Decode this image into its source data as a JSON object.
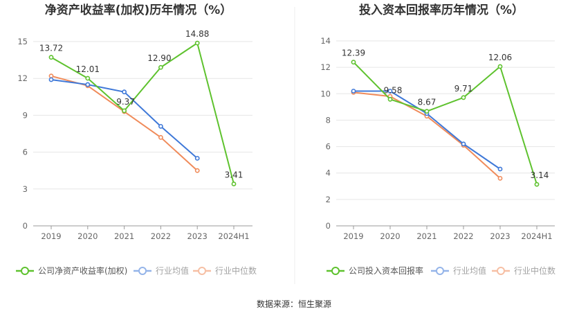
{
  "source_text": "数据来源：恒生聚源",
  "colors": {
    "company": "#5ec22e",
    "average": "#3e78d8",
    "median": "#f08b5a",
    "axis": "#999999",
    "grid": "#e6e6e6"
  },
  "chart_data": [
    {
      "type": "line",
      "title": "净资产收益率(加权)历年情况（%）",
      "categories": [
        "2019",
        "2020",
        "2021",
        "2022",
        "2023",
        "2024H1"
      ],
      "ylim": [
        0,
        15
      ],
      "yticks": [
        0,
        3,
        6,
        9,
        12,
        15
      ],
      "grid": true,
      "legend_position": "bottom",
      "series": [
        {
          "name": "公司净资产收益率(加权)",
          "key": "company",
          "values": [
            13.72,
            12.01,
            9.37,
            12.9,
            14.88,
            3.41
          ],
          "labels": [
            "13.72",
            "12.01",
            "9.37",
            "12.90",
            "14.88",
            "3.41"
          ]
        },
        {
          "name": "行业均值",
          "key": "average",
          "values": [
            11.9,
            11.5,
            10.9,
            8.1,
            5.5,
            null
          ]
        },
        {
          "name": "行业中位数",
          "key": "median",
          "values": [
            12.2,
            11.4,
            9.3,
            7.2,
            4.5,
            null
          ]
        }
      ]
    },
    {
      "type": "line",
      "title": "投入资本回报率历年情况（%）",
      "categories": [
        "2019",
        "2020",
        "2021",
        "2022",
        "2023",
        "2024H1"
      ],
      "ylim": [
        0,
        14
      ],
      "yticks": [
        0,
        2,
        4,
        6,
        8,
        10,
        12,
        14
      ],
      "grid": true,
      "legend_position": "bottom",
      "series": [
        {
          "name": "公司投入资本回报率",
          "key": "company",
          "values": [
            12.39,
            9.58,
            8.67,
            9.71,
            12.06,
            3.14
          ],
          "labels": [
            "12.39",
            "9.58",
            "8.67",
            "9.71",
            "12.06",
            "3.14"
          ]
        },
        {
          "name": "行业均值",
          "key": "average",
          "values": [
            10.2,
            10.2,
            8.5,
            6.2,
            4.3,
            null
          ]
        },
        {
          "name": "行业中位数",
          "key": "median",
          "values": [
            10.1,
            9.8,
            8.3,
            6.1,
            3.6,
            null
          ]
        }
      ]
    }
  ]
}
